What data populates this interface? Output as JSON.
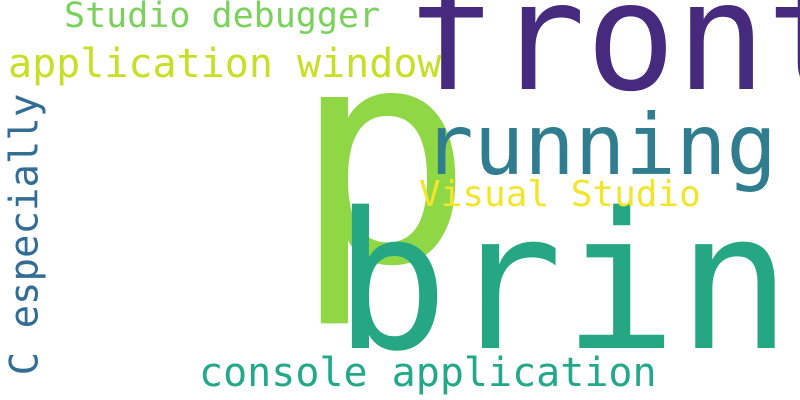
{
  "wordcloud": {
    "words": {
      "p": {
        "text": "p",
        "color": "#8fd744"
      },
      "bring": {
        "text": "bring",
        "color": "#26a784"
      },
      "front": {
        "text": "front",
        "color": "#462a7e"
      },
      "running": {
        "text": "running",
        "color": "#2f7d8e"
      },
      "visual_studio": {
        "text": "Visual Studio",
        "color": "#f2e62b"
      },
      "studio_debugger": {
        "text": "Studio debugger",
        "color": "#7bd25b"
      },
      "application_window": {
        "text": "application window",
        "color": "#c7df25"
      },
      "console_application": {
        "text": "console application",
        "color": "#23a88a"
      },
      "c_especially": {
        "text": "C especially",
        "color": "#346d93"
      }
    }
  }
}
